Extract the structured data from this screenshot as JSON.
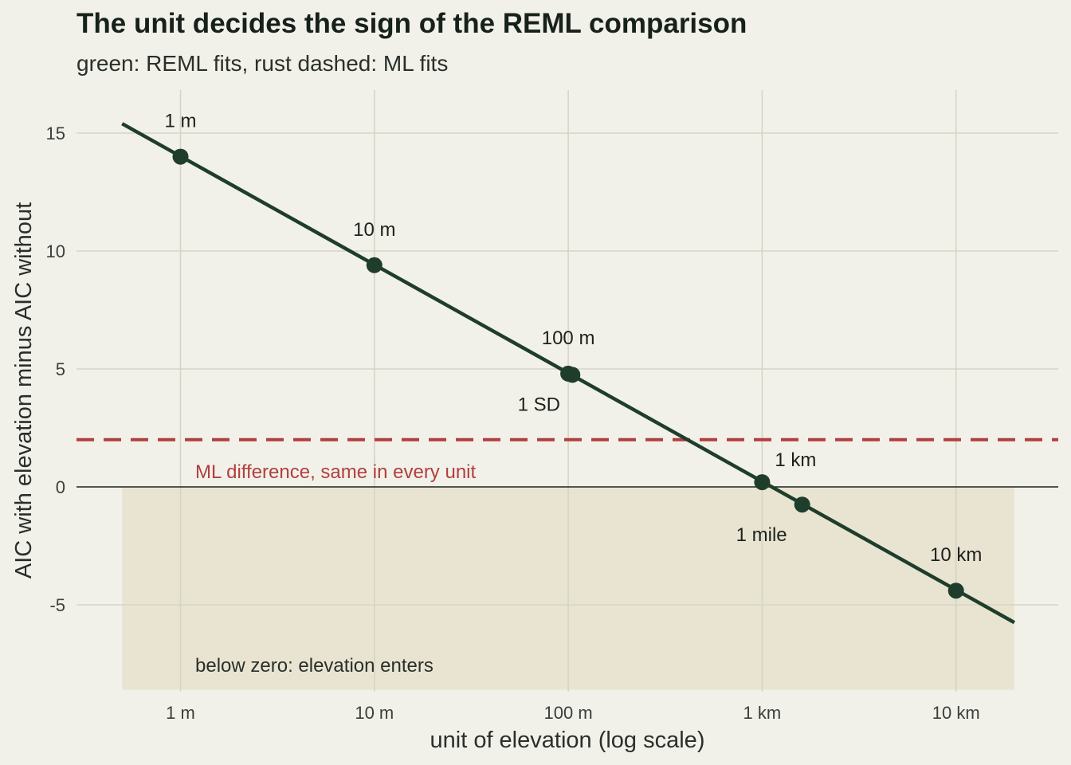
{
  "chart_data": {
    "type": "line",
    "title": "The unit decides the sign of the REML comparison",
    "subtitle": "green: REML fits, rust dashed: ML fits",
    "xlabel": "unit of elevation (log scale)",
    "ylabel": "AIC with elevation minus AIC without",
    "x_scale": "log",
    "x_ticks": [
      {
        "value": 1,
        "label": "1 m"
      },
      {
        "value": 10,
        "label": "10 m"
      },
      {
        "value": 100,
        "label": "100 m"
      },
      {
        "value": 1000,
        "label": "1 km"
      },
      {
        "value": 10000,
        "label": "10 km"
      }
    ],
    "y_ticks": [
      {
        "value": 15,
        "label": "15"
      },
      {
        "value": 10,
        "label": "10"
      },
      {
        "value": 5,
        "label": "5"
      },
      {
        "value": 0,
        "label": "0"
      },
      {
        "value": -5,
        "label": "-5"
      }
    ],
    "xlim": [
      0.5,
      20000
    ],
    "ylim": [
      -8.6,
      16.7
    ],
    "grid": true,
    "reml_line": {
      "x": [
        0.5,
        20000
      ],
      "y": [
        15.4,
        -5.75
      ]
    },
    "points": [
      {
        "x": 1,
        "y": 14.0,
        "label": "1 m",
        "label_pos": "above"
      },
      {
        "x": 10,
        "y": 9.4,
        "label": "10 m",
        "label_pos": "above"
      },
      {
        "x": 100,
        "y": 4.8,
        "label": "100 m",
        "label_pos": "above"
      },
      {
        "x": 105,
        "y": 4.75,
        "label": "1 SD",
        "label_pos": "below"
      },
      {
        "x": 1000,
        "y": 0.2,
        "label": "1 km",
        "label_pos": "above"
      },
      {
        "x": 1609,
        "y": -0.75,
        "label": "1 mile",
        "label_pos": "below"
      },
      {
        "x": 10000,
        "y": -4.4,
        "label": "10 km",
        "label_pos": "above"
      }
    ],
    "ml_line": {
      "y": 2.0,
      "label": "ML difference, same in every unit"
    },
    "shade": {
      "label": "below zero: elevation enters"
    },
    "colors": {
      "reml": "#1f3d2b",
      "ml": "#b03f3f",
      "shade": "#e9e4d1",
      "grid": "#d4d5c6",
      "zero": "#1c211d"
    }
  }
}
